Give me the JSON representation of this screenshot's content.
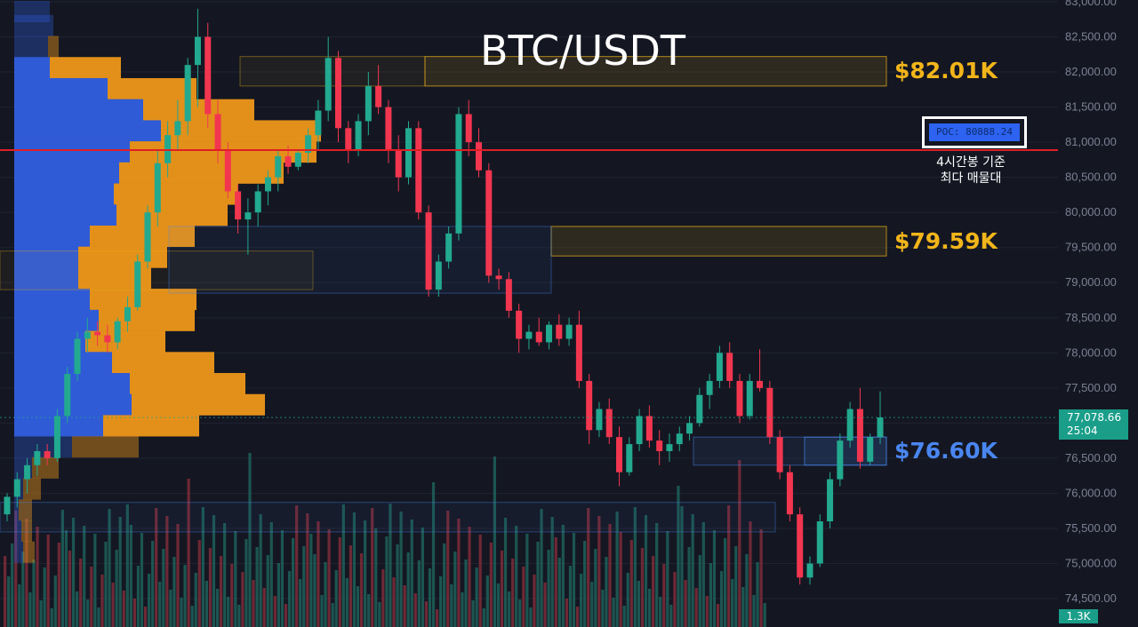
{
  "chart_data": {
    "type": "candlestick",
    "title": "BTC/USDT",
    "ylim": [
      74250,
      83000
    ],
    "y_ticks": [
      "83,000.00",
      "82,500.00",
      "82,000.00",
      "81,500.00",
      "81,000.00",
      "80,500.00",
      "80,000.00",
      "79,500.00",
      "79,000.00",
      "78,500.00",
      "78,000.00",
      "77,500.00",
      "77,000.00",
      "76,500.00",
      "76,000.00",
      "75,500.00",
      "75,000.00",
      "74,500.00"
    ],
    "y_tick_values": [
      83000,
      82500,
      82000,
      81500,
      81000,
      80500,
      80000,
      79500,
      79000,
      78500,
      78000,
      77500,
      77000,
      76500,
      76000,
      75500,
      75000,
      74500
    ],
    "last_price": "77,078.66",
    "last_price_value": 77078.66,
    "countdown": "25:04",
    "volume_label": "1.3K",
    "poc_label": "POC: 80888.24",
    "poc_value": 80888.24,
    "poc_note": [
      "4시간봉 기준",
      "최다 매물대"
    ],
    "levels": [
      {
        "label": "$82.01K",
        "value": 82010,
        "zone": [
          81800,
          82220
        ],
        "color": "#f2b51a"
      },
      {
        "label": "$79.59K",
        "value": 79590,
        "zone": [
          79380,
          79800
        ],
        "color": "#f2b51a"
      },
      {
        "label": "$76.60K",
        "value": 76600,
        "zone": [
          76400,
          76800
        ],
        "color": "#4a86f0"
      }
    ],
    "candles": [
      [
        75700,
        76000,
        75600,
        75950
      ],
      [
        75950,
        76300,
        75800,
        76200
      ],
      [
        76200,
        76500,
        76000,
        76400
      ],
      [
        76400,
        76700,
        76250,
        76600
      ],
      [
        76600,
        76700,
        76400,
        76500
      ],
      [
        76500,
        77200,
        76450,
        77100
      ],
      [
        77100,
        77800,
        77000,
        77700
      ],
      [
        77700,
        78300,
        77600,
        78200
      ],
      [
        78200,
        78500,
        78000,
        78300
      ],
      [
        78300,
        78450,
        78100,
        78250
      ],
      [
        78250,
        78400,
        78000,
        78150
      ],
      [
        78150,
        78500,
        78050,
        78450
      ],
      [
        78450,
        78800,
        78300,
        78650
      ],
      [
        78650,
        79400,
        78600,
        79300
      ],
      [
        79300,
        80100,
        79200,
        80000
      ],
      [
        80000,
        80900,
        79800,
        80700
      ],
      [
        80700,
        81300,
        80500,
        81100
      ],
      [
        81100,
        81600,
        80900,
        81300
      ],
      [
        81300,
        82200,
        81100,
        82100
      ],
      [
        82100,
        82900,
        81500,
        82500
      ],
      [
        82500,
        82700,
        81200,
        81400
      ],
      [
        81400,
        81600,
        80700,
        80900
      ],
      [
        80900,
        81000,
        80200,
        80300
      ],
      [
        80300,
        80400,
        79700,
        79900
      ],
      [
        79900,
        80200,
        79400,
        80000
      ],
      [
        80000,
        80400,
        79800,
        80300
      ],
      [
        80300,
        80600,
        80100,
        80500
      ],
      [
        80500,
        80900,
        80300,
        80800
      ],
      [
        80800,
        80950,
        80550,
        80650
      ],
      [
        80650,
        80900,
        80600,
        80850
      ],
      [
        80850,
        81200,
        80700,
        81100
      ],
      [
        81100,
        81600,
        80900,
        81450
      ],
      [
        81450,
        82500,
        81300,
        82200
      ],
      [
        82200,
        82300,
        81000,
        81200
      ],
      [
        81200,
        81300,
        80700,
        80900
      ],
      [
        80900,
        81400,
        80800,
        81300
      ],
      [
        81300,
        82000,
        81100,
        81800
      ],
      [
        81800,
        82100,
        81400,
        81500
      ],
      [
        81500,
        81600,
        80700,
        80900
      ],
      [
        80900,
        81100,
        80300,
        80500
      ],
      [
        80500,
        81300,
        80400,
        81200
      ],
      [
        81200,
        81300,
        79900,
        80000
      ],
      [
        80000,
        80100,
        78800,
        78900
      ],
      [
        78900,
        79400,
        78800,
        79300
      ],
      [
        79300,
        79800,
        79200,
        79700
      ],
      [
        79700,
        81500,
        79600,
        81400
      ],
      [
        81400,
        81600,
        80800,
        81000
      ],
      [
        81000,
        81200,
        80500,
        80600
      ],
      [
        80600,
        80700,
        79000,
        79100
      ],
      [
        79100,
        79200,
        78900,
        79050
      ],
      [
        79050,
        79150,
        78500,
        78600
      ],
      [
        78600,
        78700,
        78000,
        78200
      ],
      [
        78200,
        78400,
        78050,
        78300
      ],
      [
        78300,
        78500,
        78100,
        78150
      ],
      [
        78150,
        78450,
        78050,
        78400
      ],
      [
        78400,
        78550,
        78100,
        78200
      ],
      [
        78200,
        78500,
        78100,
        78400
      ],
      [
        78400,
        78600,
        77500,
        77600
      ],
      [
        77600,
        77700,
        76700,
        76900
      ],
      [
        76900,
        77300,
        76800,
        77200
      ],
      [
        77200,
        77350,
        76700,
        76800
      ],
      [
        76800,
        76950,
        76100,
        76300
      ],
      [
        76300,
        76800,
        76250,
        76700
      ],
      [
        76700,
        77200,
        76600,
        77100
      ],
      [
        77100,
        77250,
        76650,
        76750
      ],
      [
        76750,
        76900,
        76400,
        76600
      ],
      [
        76600,
        76850,
        76450,
        76700
      ],
      [
        76700,
        76950,
        76600,
        76850
      ],
      [
        76850,
        77100,
        76750,
        77000
      ],
      [
        77000,
        77500,
        76950,
        77400
      ],
      [
        77400,
        77700,
        77200,
        77600
      ],
      [
        77600,
        78100,
        77500,
        78000
      ],
      [
        78000,
        78150,
        77500,
        77600
      ],
      [
        77600,
        77700,
        77000,
        77100
      ],
      [
        77100,
        77700,
        77050,
        77600
      ],
      [
        77600,
        78050,
        77450,
        77500
      ],
      [
        77500,
        77600,
        76700,
        76800
      ],
      [
        76800,
        76900,
        76200,
        76300
      ],
      [
        76300,
        76400,
        75600,
        75700
      ],
      [
        75700,
        75800,
        74700,
        74800
      ],
      [
        74800,
        75100,
        74700,
        75000
      ],
      [
        75000,
        75700,
        74950,
        75600
      ],
      [
        75600,
        76300,
        75500,
        76200
      ],
      [
        76200,
        76850,
        76100,
        76750
      ],
      [
        76750,
        77300,
        76650,
        77200
      ],
      [
        77200,
        77500,
        76350,
        76450
      ],
      [
        76450,
        76850,
        76400,
        76800
      ],
      [
        76800,
        77450,
        76700,
        77080
      ]
    ],
    "volume_profile": [
      [
        83000,
        40,
        0
      ],
      [
        82800,
        44,
        0
      ],
      [
        82500,
        38,
        12
      ],
      [
        82200,
        40,
        80
      ],
      [
        81900,
        105,
        100
      ],
      [
        81600,
        145,
        125
      ],
      [
        81300,
        165,
        180
      ],
      [
        81000,
        130,
        210
      ],
      [
        80700,
        118,
        185
      ],
      [
        80400,
        112,
        140
      ],
      [
        80100,
        115,
        125
      ],
      [
        79800,
        85,
        118
      ],
      [
        79500,
        72,
        100
      ],
      [
        79200,
        72,
        82
      ],
      [
        78900,
        85,
        120
      ],
      [
        78600,
        95,
        108
      ],
      [
        78300,
        80,
        90
      ],
      [
        78000,
        110,
        115
      ],
      [
        77700,
        130,
        130
      ],
      [
        77400,
        132,
        150
      ],
      [
        77100,
        100,
        108
      ],
      [
        76800,
        65,
        75
      ],
      [
        76500,
        20,
        30
      ],
      [
        76200,
        10,
        20
      ],
      [
        75900,
        5,
        15
      ],
      [
        75600,
        8,
        12
      ],
      [
        75300,
        10,
        13
      ]
    ]
  }
}
